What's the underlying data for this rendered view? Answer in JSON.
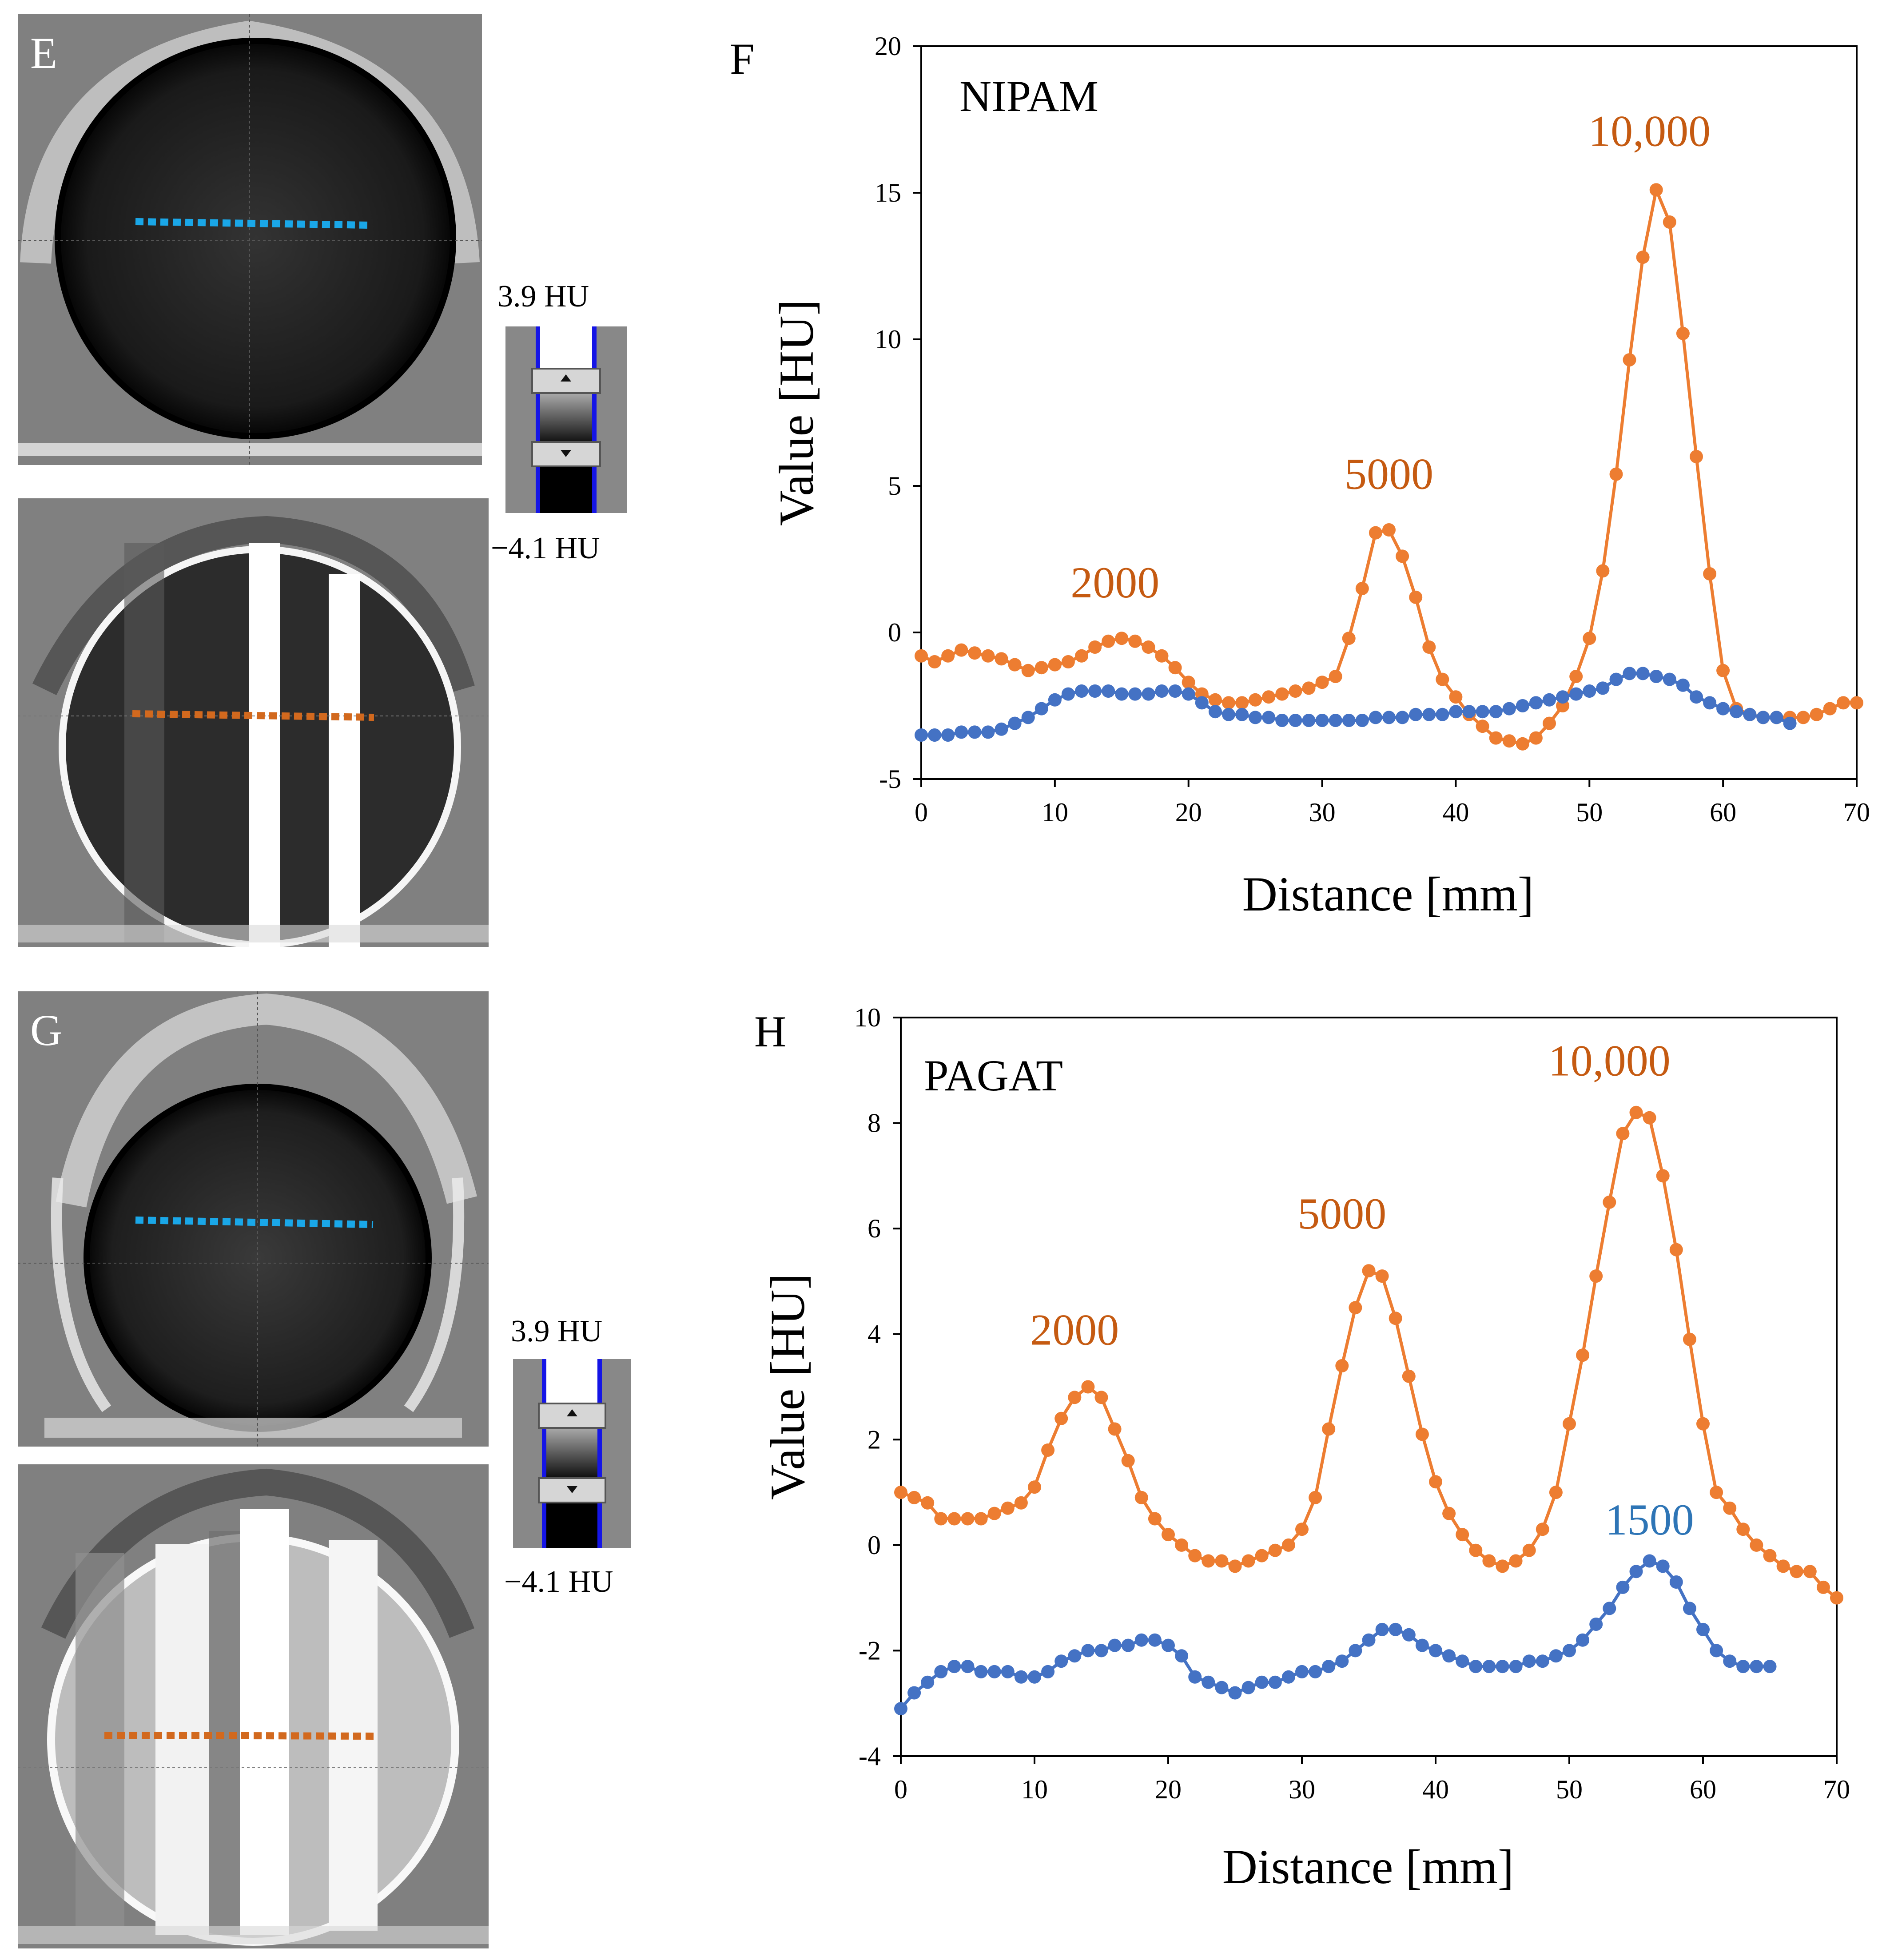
{
  "panels": {
    "E": "E",
    "F": "F",
    "G": "G",
    "H": "H"
  },
  "window_levels": [
    {
      "top": "3.9 HU",
      "bottom": "−4.1 HU"
    },
    {
      "top": "3.9 HU",
      "bottom": "−4.1 HU"
    }
  ],
  "colors": {
    "orange": "#ED7D31",
    "blue": "#4472C4",
    "orange_label": "#C55A11",
    "blue_label": "#2E75B6",
    "dot_cyan": "#1AA7E8",
    "dot_orange": "#D2691E"
  },
  "chart_data": [
    {
      "type": "line",
      "panel": "F",
      "annotation": "NIPAM",
      "xlabel": "Distance [mm]",
      "ylabel": "Value [HU]",
      "xlim": [
        0,
        70
      ],
      "ylim": [
        -5,
        20
      ],
      "xticks": [
        "0",
        "10",
        "20",
        "30",
        "40",
        "50",
        "60",
        "70"
      ],
      "yticks": [
        "-5",
        "0",
        "5",
        "10",
        "15",
        "20"
      ],
      "peak_labels": [
        {
          "text": "2000",
          "x": 14.5,
          "y": 1.2,
          "color": "orange"
        },
        {
          "text": "5000",
          "x": 35,
          "y": 4.9,
          "color": "orange"
        },
        {
          "text": "10,000",
          "x": 54.5,
          "y": 16.6,
          "color": "orange"
        }
      ],
      "series": [
        {
          "name": "orange",
          "color": "orange",
          "x": [
            0,
            1,
            2,
            3,
            4,
            5,
            6,
            7,
            8,
            9,
            10,
            11,
            12,
            13,
            14,
            15,
            16,
            17,
            18,
            19,
            20,
            21,
            22,
            23,
            24,
            25,
            26,
            27,
            28,
            29,
            30,
            31,
            32,
            33,
            34,
            35,
            36,
            37,
            38,
            39,
            40,
            41,
            42,
            43,
            44,
            45,
            46,
            47,
            48,
            49,
            50,
            51,
            52,
            53,
            54,
            55,
            56,
            57,
            58,
            59,
            60,
            61,
            62,
            63,
            64,
            65,
            66,
            67,
            68,
            69,
            70
          ],
          "values": [
            -0.8,
            -1.0,
            -0.8,
            -0.6,
            -0.7,
            -0.8,
            -0.9,
            -1.1,
            -1.3,
            -1.2,
            -1.1,
            -1.0,
            -0.8,
            -0.5,
            -0.3,
            -0.2,
            -0.3,
            -0.5,
            -0.8,
            -1.2,
            -1.7,
            -2.1,
            -2.3,
            -2.4,
            -2.4,
            -2.3,
            -2.2,
            -2.1,
            -2.0,
            -1.9,
            -1.7,
            -1.5,
            -0.2,
            1.5,
            3.4,
            3.5,
            2.6,
            1.2,
            -0.5,
            -1.6,
            -2.2,
            -2.8,
            -3.2,
            -3.6,
            -3.7,
            -3.8,
            -3.6,
            -3.1,
            -2.5,
            -1.5,
            -0.2,
            2.1,
            5.4,
            9.3,
            12.8,
            15.1,
            14.0,
            10.2,
            6.0,
            2.0,
            -1.3,
            -2.6,
            -2.8,
            -2.9,
            -2.9,
            -2.9,
            -2.9,
            -2.8,
            -2.6,
            -2.4,
            -2.4
          ]
        },
        {
          "name": "blue",
          "color": "blue",
          "x": [
            0,
            1,
            2,
            3,
            4,
            5,
            6,
            7,
            8,
            9,
            10,
            11,
            12,
            13,
            14,
            15,
            16,
            17,
            18,
            19,
            20,
            21,
            22,
            23,
            24,
            25,
            26,
            27,
            28,
            29,
            30,
            31,
            32,
            33,
            34,
            35,
            36,
            37,
            38,
            39,
            40,
            41,
            42,
            43,
            44,
            45,
            46,
            47,
            48,
            49,
            50,
            51,
            52,
            53,
            54,
            55,
            56,
            57,
            58,
            59,
            60,
            61,
            62,
            63,
            64,
            65
          ],
          "values": [
            -3.5,
            -3.5,
            -3.5,
            -3.4,
            -3.4,
            -3.4,
            -3.3,
            -3.1,
            -2.9,
            -2.6,
            -2.3,
            -2.1,
            -2.0,
            -2.0,
            -2.0,
            -2.1,
            -2.1,
            -2.1,
            -2.0,
            -2.0,
            -2.1,
            -2.4,
            -2.7,
            -2.8,
            -2.8,
            -2.9,
            -2.9,
            -3.0,
            -3.0,
            -3.0,
            -3.0,
            -3.0,
            -3.0,
            -3.0,
            -2.9,
            -2.9,
            -2.9,
            -2.8,
            -2.8,
            -2.8,
            -2.7,
            -2.7,
            -2.7,
            -2.7,
            -2.6,
            -2.5,
            -2.4,
            -2.3,
            -2.2,
            -2.1,
            -2.0,
            -1.9,
            -1.6,
            -1.4,
            -1.4,
            -1.5,
            -1.6,
            -1.8,
            -2.2,
            -2.4,
            -2.6,
            -2.7,
            -2.8,
            -2.9,
            -2.9,
            -3.1
          ]
        }
      ]
    },
    {
      "type": "line",
      "panel": "H",
      "annotation": "PAGAT",
      "xlabel": "Distance [mm]",
      "ylabel": "Value [HU]",
      "xlim": [
        0,
        70
      ],
      "ylim": [
        -4,
        10
      ],
      "xticks": [
        "0",
        "10",
        "20",
        "30",
        "40",
        "50",
        "60",
        "70"
      ],
      "yticks": [
        "-4",
        "-2",
        "0",
        "2",
        "4",
        "6",
        "8",
        "10"
      ],
      "peak_labels": [
        {
          "text": "2000",
          "x": 13,
          "y": 3.8,
          "color": "orange"
        },
        {
          "text": "5000",
          "x": 33,
          "y": 6.0,
          "color": "orange"
        },
        {
          "text": "10,000",
          "x": 53,
          "y": 8.9,
          "color": "orange"
        },
        {
          "text": "1500",
          "x": 56,
          "y": 0.2,
          "color": "blue"
        }
      ],
      "series": [
        {
          "name": "orange",
          "color": "orange",
          "x": [
            0,
            1,
            2,
            3,
            4,
            5,
            6,
            7,
            8,
            9,
            10,
            11,
            12,
            13,
            14,
            15,
            16,
            17,
            18,
            19,
            20,
            21,
            22,
            23,
            24,
            25,
            26,
            27,
            28,
            29,
            30,
            31,
            32,
            33,
            34,
            35,
            36,
            37,
            38,
            39,
            40,
            41,
            42,
            43,
            44,
            45,
            46,
            47,
            48,
            49,
            50,
            51,
            52,
            53,
            54,
            55,
            56,
            57,
            58,
            59,
            60,
            61,
            62,
            63,
            64,
            65,
            66,
            67,
            68,
            69,
            70
          ],
          "values": [
            1.0,
            0.9,
            0.8,
            0.5,
            0.5,
            0.5,
            0.5,
            0.6,
            0.7,
            0.8,
            1.1,
            1.8,
            2.4,
            2.8,
            3.0,
            2.8,
            2.2,
            1.6,
            0.9,
            0.5,
            0.2,
            0.0,
            -0.2,
            -0.3,
            -0.3,
            -0.4,
            -0.3,
            -0.2,
            -0.1,
            0.0,
            0.3,
            0.9,
            2.2,
            3.4,
            4.5,
            5.2,
            5.1,
            4.3,
            3.2,
            2.1,
            1.2,
            0.6,
            0.2,
            -0.1,
            -0.3,
            -0.4,
            -0.3,
            -0.1,
            0.3,
            1.0,
            2.3,
            3.6,
            5.1,
            6.5,
            7.8,
            8.2,
            8.1,
            7.0,
            5.6,
            3.9,
            2.3,
            1.0,
            0.7,
            0.3,
            0.0,
            -0.2,
            -0.4,
            -0.5,
            -0.5,
            -0.8,
            -1.0
          ]
        },
        {
          "name": "blue",
          "color": "blue",
          "x": [
            0,
            1,
            2,
            3,
            4,
            5,
            6,
            7,
            8,
            9,
            10,
            11,
            12,
            13,
            14,
            15,
            16,
            17,
            18,
            19,
            20,
            21,
            22,
            23,
            24,
            25,
            26,
            27,
            28,
            29,
            30,
            31,
            32,
            33,
            34,
            35,
            36,
            37,
            38,
            39,
            40,
            41,
            42,
            43,
            44,
            45,
            46,
            47,
            48,
            49,
            50,
            51,
            52,
            53,
            54,
            55,
            56,
            57,
            58,
            59,
            60,
            61,
            62,
            63,
            64,
            65
          ],
          "values": [
            -3.1,
            -2.8,
            -2.6,
            -2.4,
            -2.3,
            -2.3,
            -2.4,
            -2.4,
            -2.4,
            -2.5,
            -2.5,
            -2.4,
            -2.2,
            -2.1,
            -2.0,
            -2.0,
            -1.9,
            -1.9,
            -1.8,
            -1.8,
            -1.9,
            -2.1,
            -2.5,
            -2.6,
            -2.7,
            -2.8,
            -2.7,
            -2.6,
            -2.6,
            -2.5,
            -2.4,
            -2.4,
            -2.3,
            -2.2,
            -2.0,
            -1.8,
            -1.6,
            -1.6,
            -1.7,
            -1.9,
            -2.0,
            -2.1,
            -2.2,
            -2.3,
            -2.3,
            -2.3,
            -2.3,
            -2.2,
            -2.2,
            -2.1,
            -2.0,
            -1.8,
            -1.5,
            -1.2,
            -0.8,
            -0.5,
            -0.3,
            -0.4,
            -0.7,
            -1.2,
            -1.6,
            -2.0,
            -2.2,
            -2.3,
            -2.3,
            -2.3
          ]
        }
      ]
    }
  ]
}
